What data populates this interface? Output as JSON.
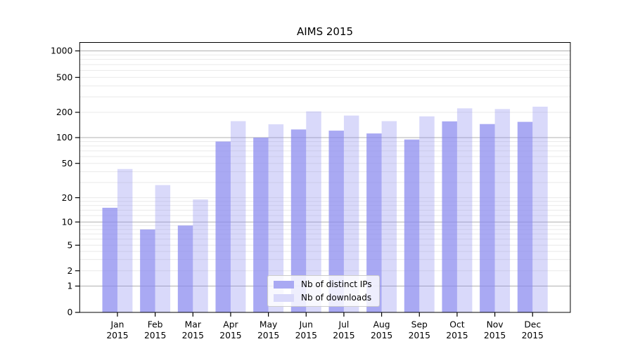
{
  "chart_data": {
    "type": "bar",
    "title": "AIMS 2015",
    "categories": [
      "Jan",
      "Feb",
      "Mar",
      "Apr",
      "May",
      "Jun",
      "Jul",
      "Aug",
      "Sep",
      "Oct",
      "Nov",
      "Dec"
    ],
    "x_year_label": "2015",
    "series": [
      {
        "name": "Nb of distinct IPs",
        "color": "#a9a9f3",
        "values": [
          15,
          8,
          9,
          90,
          100,
          125,
          121,
          112,
          95,
          156,
          145,
          154
        ]
      },
      {
        "name": "Nb of downloads",
        "color": "#d9d9fa",
        "values": [
          43,
          28,
          19,
          157,
          144,
          205,
          183,
          157,
          179,
          222,
          218,
          232
        ]
      }
    ],
    "yscale": "symlog",
    "yticks": [
      0,
      1,
      2,
      5,
      10,
      20,
      50,
      100,
      200,
      500,
      1000
    ],
    "ylim": [
      0,
      1250
    ],
    "grid": true,
    "legend_position": "lower center"
  },
  "colors": {
    "bar_base": "#8888ee",
    "ips_opacity": 0.72,
    "downloads_opacity": 0.32,
    "grid_major": "#b0b0b0",
    "grid_minor": "#e9e9e9",
    "axis": "#000000",
    "legend_border": "#cccccc",
    "background": "#ffffff"
  }
}
